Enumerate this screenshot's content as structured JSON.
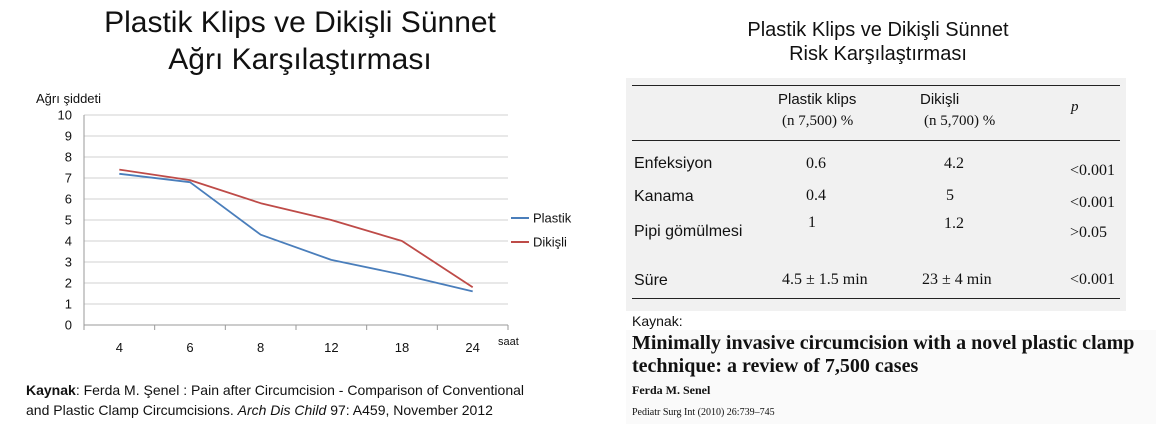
{
  "left_title": {
    "line1": "Plastik Klips ve Dikişli Sünnet",
    "line2": "Ağrı Karşılaştırması"
  },
  "chart_data": {
    "type": "line",
    "title": "",
    "xlabel": "saat",
    "ylabel": "Ağrı şiddeti",
    "categories": [
      "4",
      "6",
      "8",
      "12",
      "18",
      "24"
    ],
    "ylim": [
      0,
      10
    ],
    "yticks": [
      0,
      1,
      2,
      3,
      4,
      5,
      6,
      7,
      8,
      9,
      10
    ],
    "grid": true,
    "legend_position": "right",
    "series": [
      {
        "name": "Plastik",
        "color": "#4a7ebb",
        "values": [
          7.2,
          6.8,
          4.3,
          3.1,
          2.4,
          1.6
        ]
      },
      {
        "name": "Dikişli",
        "color": "#be4b48",
        "values": [
          7.4,
          6.9,
          5.8,
          5.0,
          4.0,
          1.8
        ]
      }
    ]
  },
  "left_source": {
    "label": "Kaynak",
    "text1": ": Ferda M. Şenel : Pain after Circumcision - Comparison of Conventional",
    "text2": "and Plastic Clamp Circumcisions. ",
    "journal": "Arch Dis Child",
    "text3": " 97: A459, November 2012"
  },
  "right_title": {
    "line1": "Plastik Klips ve Dikişli Sünnet",
    "line2": "Risk Karşılaştırması"
  },
  "table": {
    "col1_head": "Plastik klips",
    "col1_sub": "(n 7,500)  %",
    "col2_head": "Dikişli",
    "col2_sub": "(n 5,700)  %",
    "col3_head": "p",
    "rows": [
      {
        "label": "Enfeksiyon",
        "plastic": "0.6",
        "sutured": "4.2",
        "p": "<0.001"
      },
      {
        "label": "Kanama",
        "plastic": "0.4",
        "sutured": "5",
        "p": "<0.001"
      },
      {
        "label": "Pipi gömülmesi",
        "plastic": "1",
        "sutured": "1.2",
        "p": ">0.05"
      },
      {
        "label": "Süre",
        "plastic": "4.5 ± 1.5 min",
        "sutured": "23 ± 4 min",
        "p": "<0.001"
      }
    ]
  },
  "right_source": {
    "label": "Kaynak:",
    "paper_title1": "Minimally invasive circumcision with a novel plastic clamp",
    "paper_title2": "technique: a review of 7,500 cases",
    "author": "Ferda M. Senel",
    "journal": "Pediatr Surg Int (2010) 26:739–745"
  }
}
